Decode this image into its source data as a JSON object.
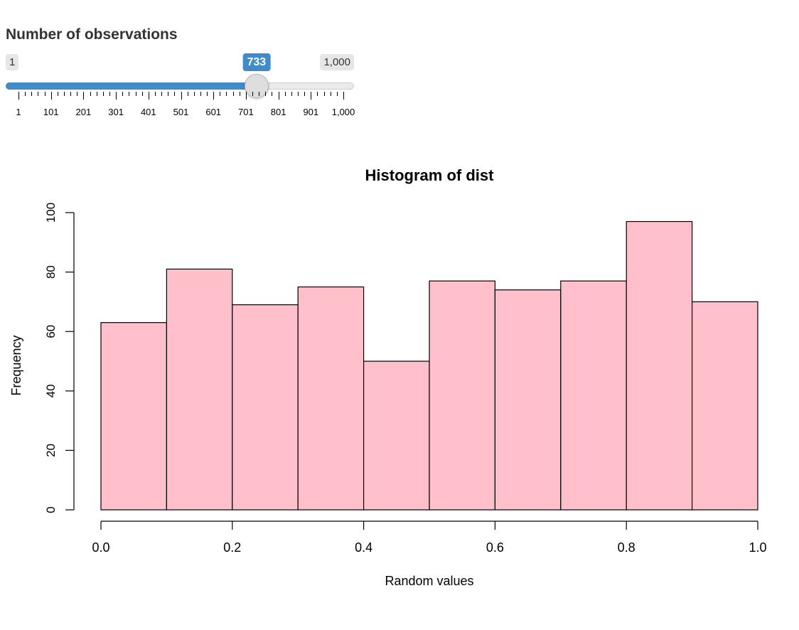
{
  "control": {
    "label": "Number of observations",
    "min": 1,
    "max": 1000,
    "step": 100,
    "value": 733,
    "min_label": "1",
    "max_label": "1,000",
    "value_label": "733",
    "tick_labels": [
      "1",
      "101",
      "201",
      "301",
      "401",
      "501",
      "601",
      "701",
      "801",
      "901",
      "1,000"
    ],
    "accent_color": "#428bca"
  },
  "chart_data": {
    "type": "bar",
    "title": "Histogram of dist",
    "xlabel": "Random values",
    "ylabel": "Frequency",
    "bins": [
      {
        "from": 0.0,
        "to": 0.1,
        "count": 63
      },
      {
        "from": 0.1,
        "to": 0.2,
        "count": 81
      },
      {
        "from": 0.2,
        "to": 0.3,
        "count": 69
      },
      {
        "from": 0.3,
        "to": 0.4,
        "count": 75
      },
      {
        "from": 0.4,
        "to": 0.5,
        "count": 50
      },
      {
        "from": 0.5,
        "to": 0.6,
        "count": 77
      },
      {
        "from": 0.6,
        "to": 0.7,
        "count": 74
      },
      {
        "from": 0.7,
        "to": 0.8,
        "count": 77
      },
      {
        "from": 0.8,
        "to": 0.9,
        "count": 97
      },
      {
        "from": 0.9,
        "to": 1.0,
        "count": 70
      }
    ],
    "x_ticks": [
      "0.0",
      "0.2",
      "0.4",
      "0.6",
      "0.8",
      "1.0"
    ],
    "y_ticks": [
      "0",
      "20",
      "40",
      "60",
      "80",
      "100"
    ],
    "xlim": [
      0,
      1
    ],
    "ylim": [
      0,
      100
    ],
    "fill_color": "#ffc0cb",
    "border_color": "#000000",
    "grid": false
  }
}
